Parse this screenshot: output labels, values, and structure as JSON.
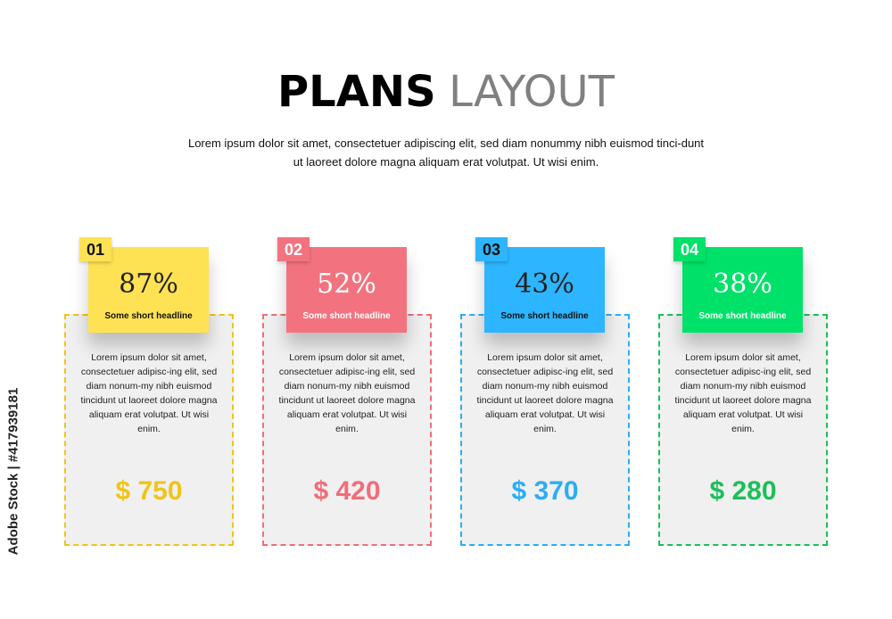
{
  "header": {
    "title_bold": "PLANS",
    "title_light": "LAYOUT",
    "subtitle": "Lorem ipsum dolor sit amet, consectetuer adipiscing elit, sed diam nonummy nibh euismod tinci-dunt ut laoreet dolore magna aliquam erat volutpat. Ut wisi enim."
  },
  "plans": [
    {
      "number": "01",
      "percent": "87%",
      "headline": "Some short headline",
      "description": "Lorem ipsum dolor sit amet, consectetuer adipisc-ing elit, sed diam nonum-my nibh euismod tincidunt ut laoreet dolore magna aliquam erat volutpat. Ut wisi enim.",
      "price": "$ 750",
      "color": "#FFE254",
      "accent": "#F0C419",
      "text_color": "#222222"
    },
    {
      "number": "02",
      "percent": "52%",
      "headline": "Some short headline",
      "description": "Lorem ipsum dolor sit amet, consectetuer adipisc-ing elit, sed diam nonum-my nibh euismod tincidunt ut laoreet dolore magna aliquam erat volutpat. Ut wisi enim.",
      "price": "$ 420",
      "color": "#F2737F",
      "accent": "#EF6E7A",
      "text_color": "#FFFFFF"
    },
    {
      "number": "03",
      "percent": "43%",
      "headline": "Some short headline",
      "description": "Lorem ipsum dolor sit amet, consectetuer adipisc-ing elit, sed diam nonum-my nibh euismod tincidunt ut laoreet dolore magna aliquam erat volutpat. Ut wisi enim.",
      "price": "$ 370",
      "color": "#2DB5FF",
      "accent": "#2AAEF5",
      "text_color": "#222222"
    },
    {
      "number": "04",
      "percent": "38%",
      "headline": "Some short headline",
      "description": "Lorem ipsum dolor sit amet, consectetuer adipisc-ing elit, sed diam nonum-my nibh euismod tincidunt ut laoreet dolore magna aliquam erat volutpat. Ut wisi enim.",
      "price": "$ 280",
      "color": "#00E16A",
      "accent": "#1BBF58",
      "text_color": "#FFFFFF"
    }
  ],
  "watermark": "Adobe Stock | #417939181"
}
